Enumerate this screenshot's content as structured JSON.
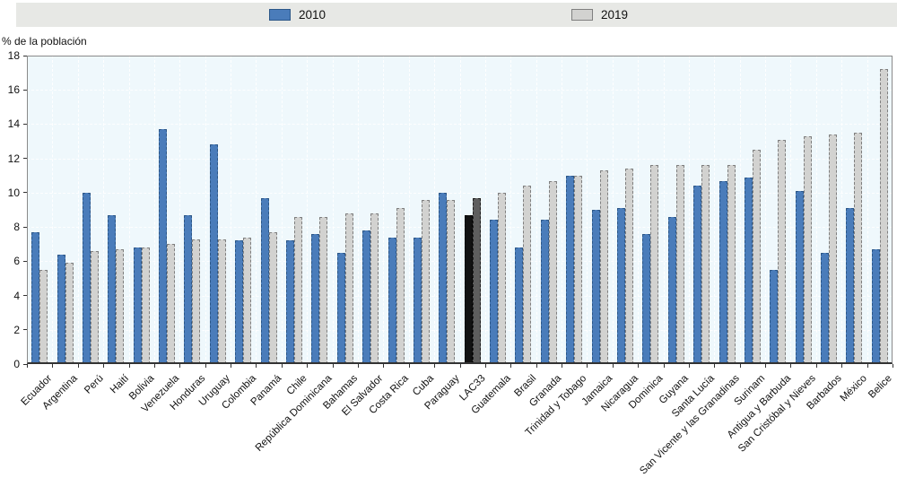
{
  "legend": {
    "items": [
      {
        "label": "2010",
        "color": "#4a7cba",
        "border_color": "#2c5788"
      },
      {
        "label": "2019",
        "color": "#d2d2d0",
        "border_color": "#7f7f7f"
      }
    ]
  },
  "chart_data": {
    "type": "bar",
    "title": "",
    "ylabel": "% de la población",
    "xlabel": "",
    "ylim": [
      0,
      18
    ],
    "ytick_step": 2,
    "grid": "white dashed gridlines on pale blue plot background",
    "legend_position": "top",
    "categories": [
      "Ecuador",
      "Argentina",
      "Perú",
      "Haití",
      "Bolivia",
      "Venezuela",
      "Honduras",
      "Uruguay",
      "Colombia",
      "Panamá",
      "Chile",
      "República Dominicana",
      "Bahamas",
      "El Salvador",
      "Costa Rica",
      "Cuba",
      "Paraguay",
      "LAC33",
      "Guatemala",
      "Brasil",
      "Granada",
      "Trinidad y Tobago",
      "Jamaica",
      "Nicaragua",
      "Dominica",
      "Guyana",
      "Santa Lucía",
      "San Vicente y las Granadinas",
      "Surinam",
      "Antigua y Barbuda",
      "San Cristóbal y Nieves",
      "Barbados",
      "México",
      "Belice"
    ],
    "series": [
      {
        "name": "2010",
        "color": "#4a7cba",
        "border_color": "#2c5788",
        "values": [
          7.7,
          6.4,
          10.0,
          8.7,
          6.8,
          13.7,
          8.7,
          12.8,
          7.2,
          9.7,
          7.2,
          7.6,
          6.5,
          7.8,
          7.4,
          7.4,
          10.0,
          8.7,
          8.4,
          6.8,
          8.4,
          11.0,
          9.0,
          9.1,
          7.6,
          8.6,
          10.4,
          10.7,
          10.9,
          5.5,
          10.1,
          6.5,
          9.1,
          6.7
        ]
      },
      {
        "name": "2019",
        "color": "#d2d2d0",
        "border_color": "#7f7f7f",
        "values": [
          5.5,
          5.9,
          6.6,
          6.7,
          6.8,
          7.0,
          7.3,
          7.3,
          7.4,
          7.7,
          8.6,
          8.6,
          8.8,
          8.8,
          9.1,
          9.6,
          9.6,
          9.7,
          10.0,
          10.4,
          10.7,
          11.0,
          11.3,
          11.4,
          11.6,
          11.6,
          11.6,
          11.6,
          12.5,
          13.1,
          13.3,
          13.4,
          13.5,
          17.2
        ]
      }
    ],
    "highlight": {
      "category": "LAC33",
      "colors": [
        "#121212",
        "#5e5e5e"
      ],
      "border_colors": [
        "#000000",
        "#1e1e1e"
      ]
    },
    "plot_bg": "#eff8fc",
    "legend_bg": "#e7e8e5"
  }
}
